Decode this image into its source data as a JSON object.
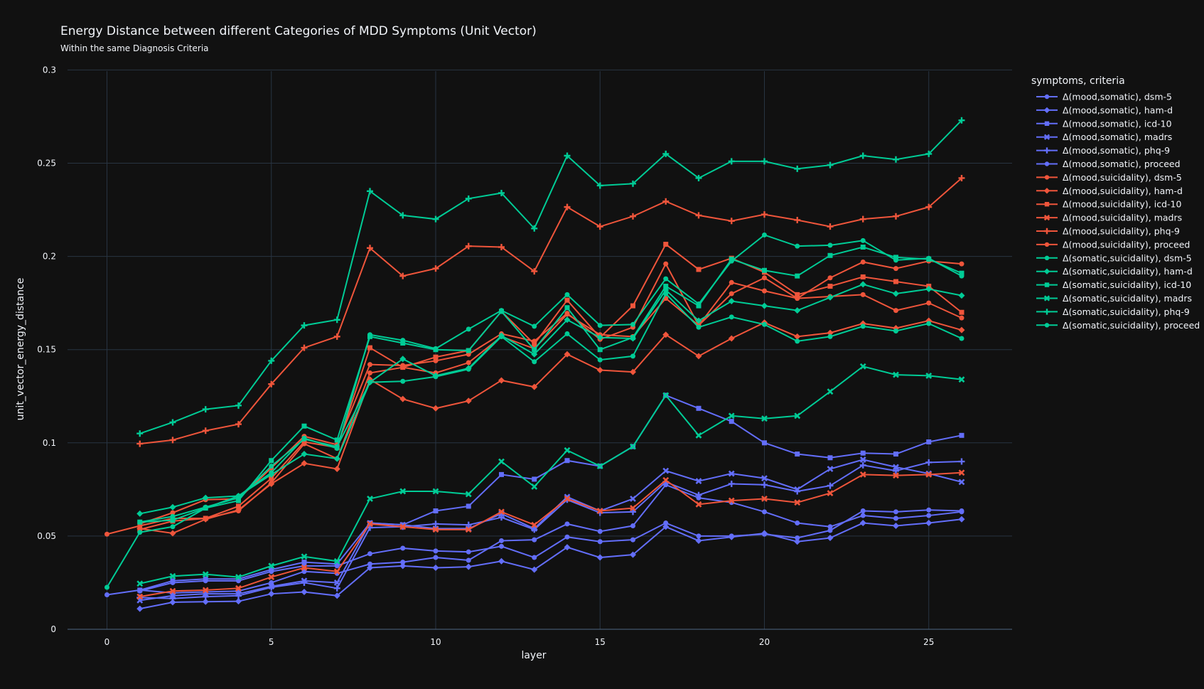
{
  "chart_data": {
    "type": "line",
    "title": "Energy Distance between different Categories of MDD Symptoms (Unit Vector)",
    "subtitle": "Within the same Diagnosis Criteria",
    "xlabel": "layer",
    "ylabel": "unit_vector_energy_distance",
    "xlim": [
      -1.2,
      27.5
    ],
    "ylim": [
      0,
      0.3
    ],
    "xticks": [
      0,
      5,
      10,
      15,
      20,
      25
    ],
    "yticks": [
      0,
      0.05,
      0.1,
      0.15,
      0.2,
      0.25,
      0.3
    ],
    "ytick_labels": [
      "0",
      "0.05",
      "0.1",
      "0.15",
      "0.2",
      "0.25",
      "0.3"
    ],
    "grid": true,
    "legend_title": "symptoms, criteria",
    "legend_position": "right",
    "colors": {
      "mood_somatic": "#636efa",
      "mood_suicidality": "#EF553B",
      "somatic_suicidality": "#00cc96",
      "background": "#111111",
      "grid": "#283442"
    },
    "series": [
      {
        "name": "Δ(mood,somatic), dsm-5",
        "color": "#636efa",
        "marker": "circle",
        "x0": 1,
        "values": [
          0.0205,
          0.025,
          0.026,
          0.026,
          0.031,
          0.034,
          0.034,
          0.0405,
          0.0435,
          0.042,
          0.0415,
          0.0445,
          0.0385,
          0.0495,
          0.047,
          0.048,
          0.057,
          0.05,
          0.05,
          0.051,
          0.049,
          0.053,
          0.0635,
          0.063,
          0.064,
          0.0635
        ]
      },
      {
        "name": "Δ(mood,somatic), ham-d",
        "color": "#636efa",
        "marker": "diamond",
        "x0": 1,
        "values": [
          0.011,
          0.0145,
          0.0148,
          0.015,
          0.019,
          0.02,
          0.018,
          0.033,
          0.034,
          0.033,
          0.0335,
          0.0365,
          0.032,
          0.044,
          0.0385,
          0.04,
          0.055,
          0.0475,
          0.0495,
          0.0515,
          0.047,
          0.049,
          0.057,
          0.0555,
          0.057,
          0.059
        ]
      },
      {
        "name": "Δ(mood,somatic), icd-10",
        "color": "#636efa",
        "marker": "square",
        "x0": 1,
        "values": [
          0.021,
          0.026,
          0.027,
          0.027,
          0.032,
          0.036,
          0.035,
          0.057,
          0.056,
          0.0635,
          0.066,
          0.083,
          0.0805,
          0.0905,
          0.0875,
          0.098,
          0.1255,
          0.1185,
          0.1115,
          0.1,
          0.094,
          0.092,
          0.0945,
          0.094,
          0.1005,
          0.104
        ]
      },
      {
        "name": "Δ(mood,somatic), madrs",
        "color": "#636efa",
        "marker": "x",
        "x0": 1,
        "values": [
          0.0155,
          0.018,
          0.019,
          0.019,
          0.023,
          0.026,
          0.025,
          0.057,
          0.056,
          0.054,
          0.054,
          0.062,
          0.054,
          0.071,
          0.0635,
          0.07,
          0.085,
          0.0795,
          0.0835,
          0.081,
          0.075,
          0.086,
          0.091,
          0.087,
          0.0835,
          0.079
        ]
      },
      {
        "name": "Δ(mood,somatic), phq-9",
        "color": "#636efa",
        "marker": "cross",
        "x0": 1,
        "values": [
          0.017,
          0.0165,
          0.0175,
          0.018,
          0.0225,
          0.025,
          0.022,
          0.0545,
          0.055,
          0.0565,
          0.056,
          0.06,
          0.0535,
          0.0695,
          0.0625,
          0.063,
          0.079,
          0.072,
          0.078,
          0.0775,
          0.074,
          0.077,
          0.088,
          0.085,
          0.0895,
          0.09
        ]
      },
      {
        "name": "Δ(mood,somatic), proceed",
        "color": "#636efa",
        "marker": "circle",
        "x0": 0,
        "values": [
          0.0185,
          0.021,
          0.0195,
          0.02,
          0.0205,
          0.025,
          0.031,
          0.03,
          0.035,
          0.036,
          0.0385,
          0.037,
          0.0475,
          0.048,
          0.0565,
          0.0525,
          0.0555,
          0.0775,
          0.0705,
          0.068,
          0.063,
          0.057,
          0.055,
          0.061,
          0.0595,
          0.061,
          0.063
        ]
      },
      {
        "name": "Δ(mood,suicidality), dsm-5",
        "color": "#EF553B",
        "marker": "circle",
        "x0": 1,
        "values": [
          0.0565,
          0.0625,
          0.0695,
          0.07,
          0.0865,
          0.1035,
          0.099,
          0.142,
          0.1415,
          0.144,
          0.1475,
          0.1585,
          0.1545,
          0.1695,
          0.1555,
          0.162,
          0.196,
          0.163,
          0.18,
          0.1885,
          0.1775,
          0.1885,
          0.197,
          0.1935,
          0.1975,
          0.196
        ]
      },
      {
        "name": "Δ(mood,suicidality), ham-d",
        "color": "#EF553B",
        "marker": "diamond",
        "x0": 1,
        "values": [
          0.054,
          0.0515,
          0.059,
          0.064,
          0.078,
          0.089,
          0.086,
          0.134,
          0.1235,
          0.1185,
          0.1225,
          0.1335,
          0.13,
          0.1475,
          0.139,
          0.138,
          0.158,
          0.1465,
          0.156,
          0.1645,
          0.157,
          0.159,
          0.164,
          0.1615,
          0.1655,
          0.1605
        ]
      },
      {
        "name": "Δ(mood,suicidality), icd-10",
        "color": "#EF553B",
        "marker": "square",
        "x0": 1,
        "values": [
          0.0535,
          0.058,
          0.0595,
          0.066,
          0.081,
          0.1005,
          0.0975,
          0.151,
          0.1405,
          0.146,
          0.1495,
          0.1705,
          0.153,
          0.1765,
          0.1565,
          0.1735,
          0.2065,
          0.193,
          0.199,
          0.1915,
          0.1795,
          0.184,
          0.189,
          0.1865,
          0.184,
          0.17
        ]
      },
      {
        "name": "Δ(mood,suicidality), madrs",
        "color": "#EF553B",
        "marker": "x",
        "x0": 1,
        "values": [
          0.0175,
          0.0205,
          0.021,
          0.022,
          0.028,
          0.033,
          0.031,
          0.0565,
          0.055,
          0.0535,
          0.0535,
          0.063,
          0.056,
          0.07,
          0.0635,
          0.065,
          0.08,
          0.067,
          0.069,
          0.07,
          0.068,
          0.073,
          0.083,
          0.0825,
          0.083,
          0.084
        ]
      },
      {
        "name": "Δ(mood,suicidality), phq-9",
        "color": "#EF553B",
        "marker": "cross",
        "x0": 1,
        "values": [
          0.0995,
          0.1015,
          0.1065,
          0.11,
          0.1315,
          0.151,
          0.157,
          0.2045,
          0.1895,
          0.1935,
          0.2055,
          0.205,
          0.192,
          0.2265,
          0.216,
          0.2215,
          0.2295,
          0.222,
          0.219,
          0.2225,
          0.2195,
          0.216,
          0.22,
          0.2215,
          0.2265,
          0.242
        ]
      },
      {
        "name": "Δ(mood,suicidality), proceed",
        "color": "#EF553B",
        "marker": "circle",
        "x0": 0,
        "values": [
          0.051,
          0.0555,
          0.0595,
          0.0595,
          0.0635,
          0.0785,
          0.0995,
          0.0915,
          0.1375,
          0.1405,
          0.1375,
          0.143,
          0.157,
          0.1505,
          0.169,
          0.158,
          0.157,
          0.1775,
          0.163,
          0.186,
          0.1815,
          0.1775,
          0.1785,
          0.1795,
          0.171,
          0.175,
          0.167
        ]
      },
      {
        "name": "Δ(somatic,suicidality), dsm-5",
        "color": "#00cc96",
        "marker": "circle",
        "x0": 1,
        "values": [
          0.0575,
          0.0605,
          0.0655,
          0.0705,
          0.0875,
          0.102,
          0.098,
          0.1325,
          0.133,
          0.1355,
          0.1395,
          0.157,
          0.1435,
          0.1585,
          0.1445,
          0.1465,
          0.18,
          0.162,
          0.1675,
          0.1635,
          0.1545,
          0.157,
          0.1625,
          0.16,
          0.164,
          0.156
        ]
      },
      {
        "name": "Δ(somatic,suicidality), ham-d",
        "color": "#00cc96",
        "marker": "diamond",
        "x0": 1,
        "values": [
          0.062,
          0.0655,
          0.0705,
          0.0715,
          0.083,
          0.094,
          0.0915,
          0.1325,
          0.145,
          0.136,
          0.14,
          0.1575,
          0.1475,
          0.166,
          0.1565,
          0.156,
          0.182,
          0.1655,
          0.176,
          0.1735,
          0.171,
          0.178,
          0.185,
          0.18,
          0.1825,
          0.179
        ]
      },
      {
        "name": "Δ(somatic,suicidality), icd-10",
        "color": "#00cc96",
        "marker": "square",
        "x0": 1,
        "values": [
          0.0575,
          0.0585,
          0.065,
          0.069,
          0.0905,
          0.109,
          0.1015,
          0.157,
          0.1535,
          0.15,
          0.1495,
          0.1705,
          0.15,
          0.1725,
          0.15,
          0.1565,
          0.184,
          0.1735,
          0.1985,
          0.1925,
          0.1895,
          0.2005,
          0.205,
          0.1995,
          0.1985,
          0.191
        ]
      },
      {
        "name": "Δ(somatic,suicidality), madrs",
        "color": "#00cc96",
        "marker": "x",
        "x0": 1,
        "values": [
          0.0245,
          0.0285,
          0.0295,
          0.028,
          0.034,
          0.039,
          0.0365,
          0.07,
          0.074,
          0.074,
          0.0725,
          0.09,
          0.0765,
          0.096,
          0.0875,
          0.098,
          0.1255,
          0.104,
          0.1145,
          0.113,
          0.1145,
          0.1275,
          0.141,
          0.1365,
          0.136,
          0.134
        ]
      },
      {
        "name": "Δ(somatic,suicidality), phq-9",
        "color": "#00cc96",
        "marker": "cross",
        "x0": 1,
        "values": [
          0.105,
          0.111,
          0.118,
          0.12,
          0.144,
          0.163,
          0.166,
          0.235,
          0.222,
          0.22,
          0.231,
          0.234,
          0.215,
          0.254,
          0.238,
          0.239,
          0.255,
          0.242,
          0.251,
          0.251,
          0.247,
          0.249,
          0.254,
          0.252,
          0.255,
          0.273
        ]
      },
      {
        "name": "Δ(somatic,suicidality), proceed",
        "color": "#00cc96",
        "marker": "circle",
        "x0": 0,
        "values": [
          0.0225,
          0.052,
          0.055,
          0.065,
          0.0715,
          0.084,
          0.1025,
          0.097,
          0.158,
          0.155,
          0.1505,
          0.161,
          0.171,
          0.1625,
          0.1795,
          0.163,
          0.1635,
          0.188,
          0.1745,
          0.1975,
          0.2115,
          0.2055,
          0.206,
          0.2085,
          0.198,
          0.199,
          0.1895
        ]
      }
    ]
  }
}
